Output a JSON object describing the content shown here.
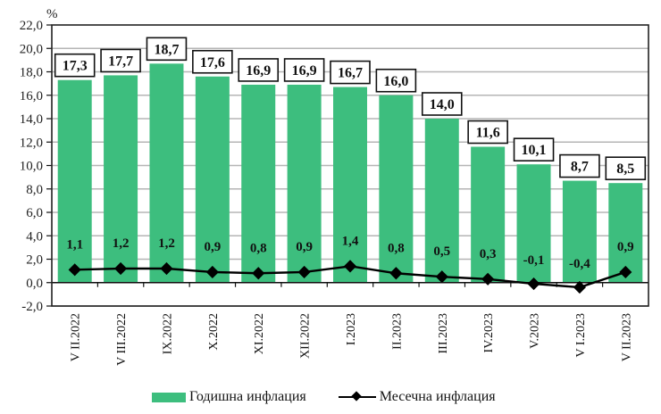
{
  "chart_data": {
    "type": "bar+line",
    "title": "",
    "ylabel": "%",
    "xlabel": "",
    "ylim": [
      -2.0,
      22.0
    ],
    "ytick_step": 2.0,
    "yticks": [
      "22,0",
      "20,0",
      "18,0",
      "16,0",
      "14,0",
      "12,0",
      "10,0",
      "8,0",
      "6,0",
      "4,0",
      "2,0",
      "0,0",
      "-2,0"
    ],
    "grid": true,
    "legend_position": "bottom",
    "categories": [
      "V II.2022",
      "V III.2022",
      "IX.2022",
      "X.2022",
      "XI.2022",
      "XII.2022",
      "I.2023",
      "II.2023",
      "III.2023",
      "IV.2023",
      "V.2023",
      "V I.2023",
      "V II.2023"
    ],
    "series": [
      {
        "name": "Годишна инфлация",
        "type": "bar",
        "color": "#3DBE7E",
        "values": [
          17.3,
          17.7,
          18.7,
          17.6,
          16.9,
          16.9,
          16.7,
          16.0,
          14.0,
          11.6,
          10.1,
          8.7,
          8.5
        ],
        "labels": [
          "17,3",
          "17,7",
          "18,7",
          "17,6",
          "16,9",
          "16,9",
          "16,7",
          "16,0",
          "14,0",
          "11,6",
          "10,1",
          "8,7",
          "8,5"
        ]
      },
      {
        "name": "Месечна инфлация",
        "type": "line",
        "color": "#000000",
        "marker": "diamond",
        "values": [
          1.1,
          1.2,
          1.2,
          0.9,
          0.8,
          0.9,
          1.4,
          0.8,
          0.5,
          0.3,
          -0.1,
          -0.4,
          0.9
        ],
        "labels": [
          "1,1",
          "1,2",
          "1,2",
          "0,9",
          "0,8",
          "0,9",
          "1,4",
          "0,8",
          "0,5",
          "0,3",
          "-0,1",
          "-0,4",
          "0,9"
        ]
      }
    ]
  },
  "legend": {
    "annual": "Годишна инфлация",
    "monthly": "Месечна инфлация"
  }
}
